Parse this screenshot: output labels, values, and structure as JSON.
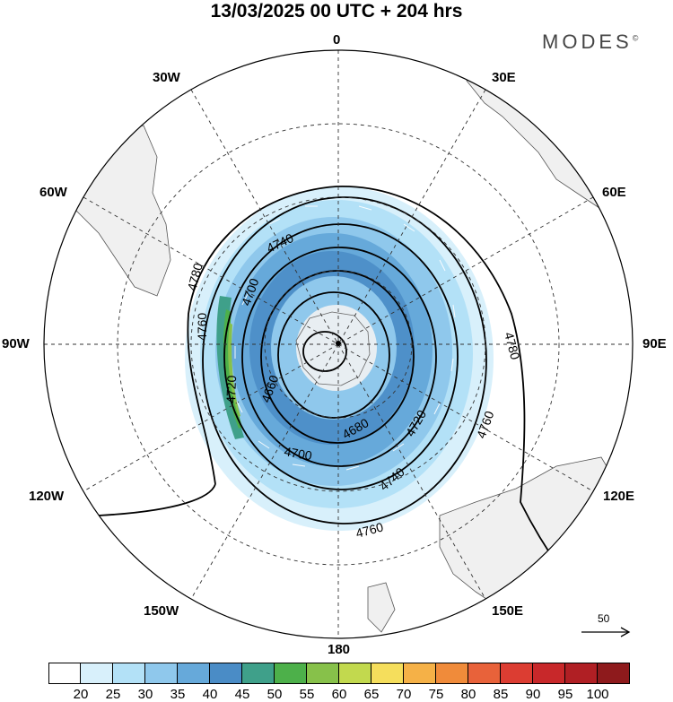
{
  "title": "13/03/2025  00 UTC  + 204 hrs",
  "brand": "MODES",
  "brand_mark": "©",
  "longitude_labels": {
    "l0": "0",
    "l30e": "30E",
    "l60e": "60E",
    "l90e": "90E",
    "l120e": "120E",
    "l150e": "150E",
    "l180": "180",
    "l150w": "150W",
    "l120w": "120W",
    "l90w": "90W",
    "l60w": "60W",
    "l30w": "30W"
  },
  "contours": {
    "c4660": "4660",
    "c4680": "4680",
    "c4700a": "4700",
    "c4700b": "4700",
    "c4720a": "4720",
    "c4720b": "4720",
    "c4740a": "4740",
    "c4740b": "4740",
    "c4760a": "4760",
    "c4760b": "4760",
    "c4760c": "4760",
    "c4780a": "4780",
    "c4780b": "4780"
  },
  "reference_vector": "50",
  "colorbar": {
    "colors": [
      "#ffffff",
      "#d8f0fb",
      "#b3e1f7",
      "#8fc8ec",
      "#66a9da",
      "#4a8cc6",
      "#3fa08a",
      "#4db04a",
      "#87c14a",
      "#c2d94e",
      "#f5de5c",
      "#f5b147",
      "#f08b3a",
      "#e8623a",
      "#dc3d32",
      "#c8282a",
      "#b01f24",
      "#8e1a1c"
    ],
    "ticks": [
      "20",
      "25",
      "30",
      "35",
      "40",
      "45",
      "50",
      "55",
      "60",
      "65",
      "70",
      "75",
      "80",
      "85",
      "90",
      "95",
      "100"
    ]
  }
}
